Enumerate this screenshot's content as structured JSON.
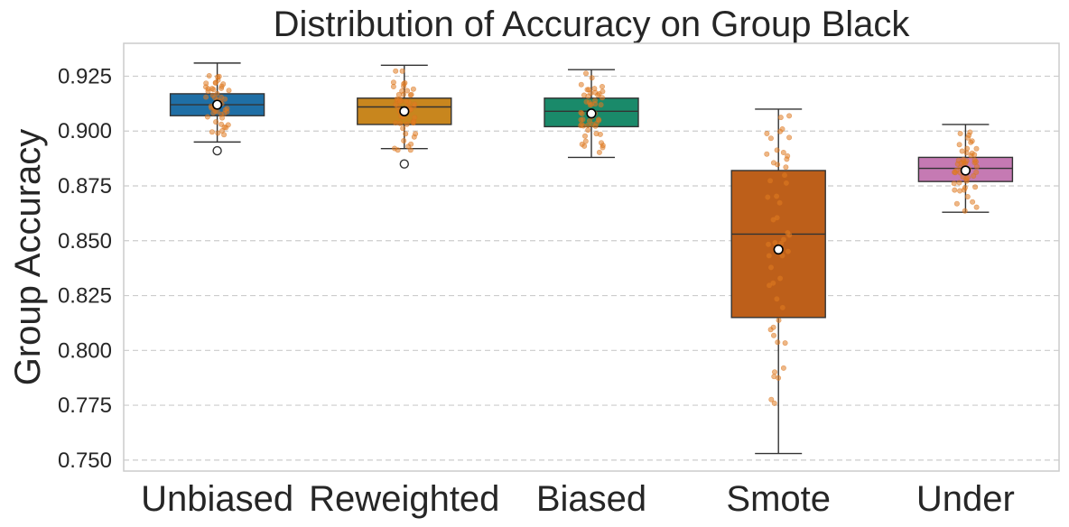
{
  "chart_data": {
    "type": "box",
    "title": "Distribution of Accuracy on Group Black",
    "xlabel": "",
    "ylabel": "Group Accuracy",
    "ylim": [
      0.745,
      0.94
    ],
    "yticks": [
      0.75,
      0.775,
      0.8,
      0.825,
      0.85,
      0.875,
      0.9,
      0.925
    ],
    "ytick_labels": [
      "0.750",
      "0.775",
      "0.800",
      "0.825",
      "0.850",
      "0.875",
      "0.900",
      "0.925"
    ],
    "grid": true,
    "categories": [
      "Unbiased",
      "Reweighted",
      "Biased",
      "Smote",
      "Under"
    ],
    "boxes": [
      {
        "name": "Unbiased",
        "color": "#1f6fa6",
        "whisker_low": 0.895,
        "q1": 0.907,
        "median": 0.912,
        "q3": 0.917,
        "whisker_high": 0.931,
        "mean": 0.912,
        "fliers": [
          0.891
        ],
        "points_min": 0.891,
        "points_max": 0.931
      },
      {
        "name": "Reweighted",
        "color": "#c8861e",
        "whisker_low": 0.892,
        "q1": 0.903,
        "median": 0.911,
        "q3": 0.915,
        "whisker_high": 0.93,
        "mean": 0.909,
        "fliers": [
          0.885
        ],
        "points_min": 0.885,
        "points_max": 0.93
      },
      {
        "name": "Biased",
        "color": "#1a8a6a",
        "whisker_low": 0.888,
        "q1": 0.902,
        "median": 0.909,
        "q3": 0.915,
        "whisker_high": 0.928,
        "mean": 0.908,
        "fliers": [],
        "points_min": 0.888,
        "points_max": 0.928
      },
      {
        "name": "Smote",
        "color": "#bd5f1a",
        "whisker_low": 0.753,
        "q1": 0.815,
        "median": 0.853,
        "q3": 0.882,
        "whisker_high": 0.91,
        "mean": 0.846,
        "fliers": [],
        "points_min": 0.753,
        "points_max": 0.91
      },
      {
        "name": "Under",
        "color": "#c57ab3",
        "whisker_low": 0.863,
        "q1": 0.877,
        "median": 0.883,
        "q3": 0.888,
        "whisker_high": 0.903,
        "mean": 0.882,
        "fliers": [],
        "points_min": 0.863,
        "points_max": 0.903
      }
    ],
    "jitter_points_per_box": 50,
    "jitter_color": "#e07b22"
  }
}
